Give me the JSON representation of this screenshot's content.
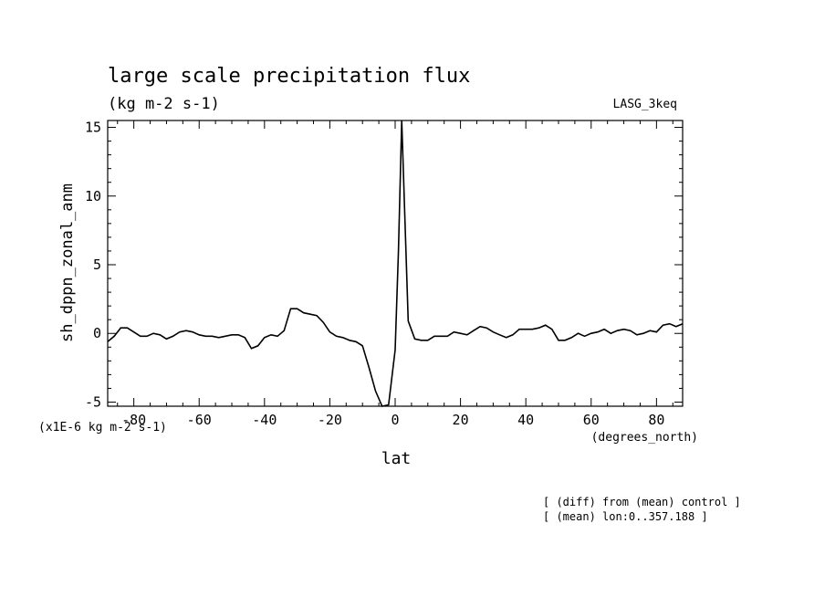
{
  "chart_data": {
    "type": "line",
    "title": "large scale precipitation flux",
    "subtitle": "(kg m-2 s-1)",
    "model_label": "LASG_3keq",
    "ylabel": "sh_dppn_zonal_anm",
    "xlabel": "lat",
    "x_units": "(degrees_north)",
    "y_scale_label": "(x1E-6 kg m-2 s-1)",
    "xlim": [
      -88,
      88
    ],
    "ylim": [
      -5.3,
      15.5
    ],
    "x_ticks": [
      -80,
      -60,
      -40,
      -20,
      0,
      20,
      40,
      60,
      80
    ],
    "x_tick_labels": [
      "-80",
      "-60",
      "-40",
      "-20",
      "0",
      "20",
      "40",
      "60",
      "80"
    ],
    "y_ticks": [
      -5,
      0,
      5,
      10,
      15
    ],
    "y_tick_labels": [
      "-5",
      "0",
      "5",
      "10",
      "15"
    ],
    "grid": false,
    "series": [
      {
        "x": [
          -88,
          -86,
          -84,
          -82,
          -80,
          -78,
          -76,
          -74,
          -72,
          -70,
          -68,
          -66,
          -64,
          -62,
          -60,
          -58,
          -56,
          -54,
          -52,
          -50,
          -48,
          -46,
          -44,
          -42,
          -40,
          -38,
          -36,
          -34,
          -32,
          -30,
          -28,
          -26,
          -24,
          -22,
          -20,
          -18,
          -16,
          -14,
          -12,
          -10,
          -8,
          -6,
          -4,
          -2,
          0,
          1,
          2,
          4,
          6,
          8,
          10,
          12,
          14,
          16,
          18,
          20,
          22,
          24,
          26,
          28,
          30,
          32,
          34,
          36,
          38,
          40,
          42,
          44,
          46,
          48,
          50,
          52,
          54,
          56,
          58,
          60,
          62,
          64,
          66,
          68,
          70,
          72,
          74,
          76,
          78,
          80,
          82,
          84,
          86,
          88
        ],
        "y": [
          -0.6,
          -0.2,
          0.4,
          0.4,
          0.1,
          -0.2,
          -0.2,
          0.0,
          -0.1,
          -0.4,
          -0.2,
          0.1,
          0.2,
          0.1,
          -0.1,
          -0.2,
          -0.2,
          -0.3,
          -0.2,
          -0.1,
          -0.1,
          -0.3,
          -1.1,
          -0.9,
          -0.3,
          -0.1,
          -0.2,
          0.2,
          1.8,
          1.8,
          1.5,
          1.4,
          1.3,
          0.8,
          0.1,
          -0.2,
          -0.3,
          -0.5,
          -0.6,
          -0.9,
          -2.5,
          -4.2,
          -5.4,
          -5.2,
          -1.2,
          6.0,
          15.5,
          0.9,
          -0.4,
          -0.5,
          -0.5,
          -0.2,
          -0.2,
          -0.2,
          0.1,
          0.0,
          -0.1,
          0.2,
          0.5,
          0.4,
          0.1,
          -0.1,
          -0.3,
          -0.1,
          0.3,
          0.3,
          0.3,
          0.4,
          0.6,
          0.3,
          -0.5,
          -0.5,
          -0.3,
          0.0,
          -0.2,
          0.0,
          0.1,
          0.3,
          0.0,
          0.2,
          0.3,
          0.2,
          -0.1,
          0.0,
          0.2,
          0.1,
          0.6,
          0.7,
          0.5,
          0.7
        ]
      }
    ]
  },
  "footnotes": [
    "[ (diff) from (mean) control ]",
    "[ (mean) lon:0..357.188 ]"
  ]
}
